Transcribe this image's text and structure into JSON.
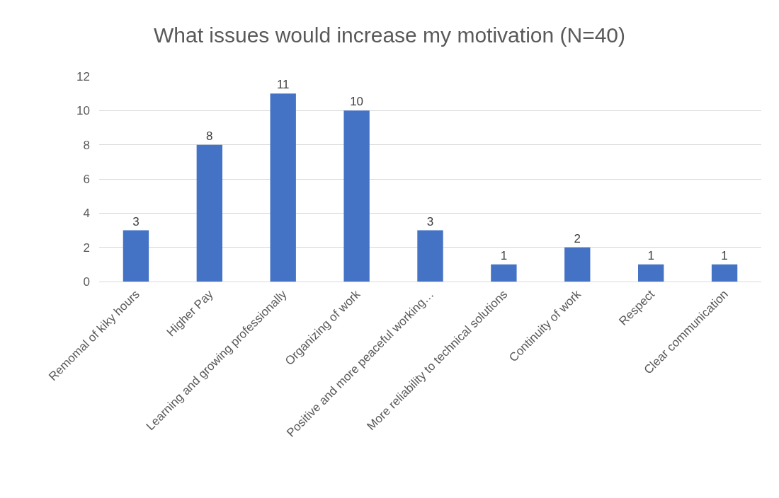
{
  "chart_data": {
    "type": "bar",
    "title": "What issues would increase my motivation (N=40)",
    "categories": [
      "Remomal of kiky hours",
      "Higher Pay",
      "Learning and growing professionally",
      "Organizing of work",
      "Positive and more peaceful working…",
      "More reliability to technical solutions",
      "Continuity of work",
      "Respect",
      "Clear communication"
    ],
    "values": [
      3,
      8,
      11,
      10,
      3,
      1,
      2,
      1,
      1
    ],
    "color": "#4472c4",
    "ylim": [
      0,
      12
    ],
    "yticks": [
      0,
      2,
      4,
      6,
      8,
      10,
      12
    ],
    "grid": "y",
    "data_labels": true
  }
}
